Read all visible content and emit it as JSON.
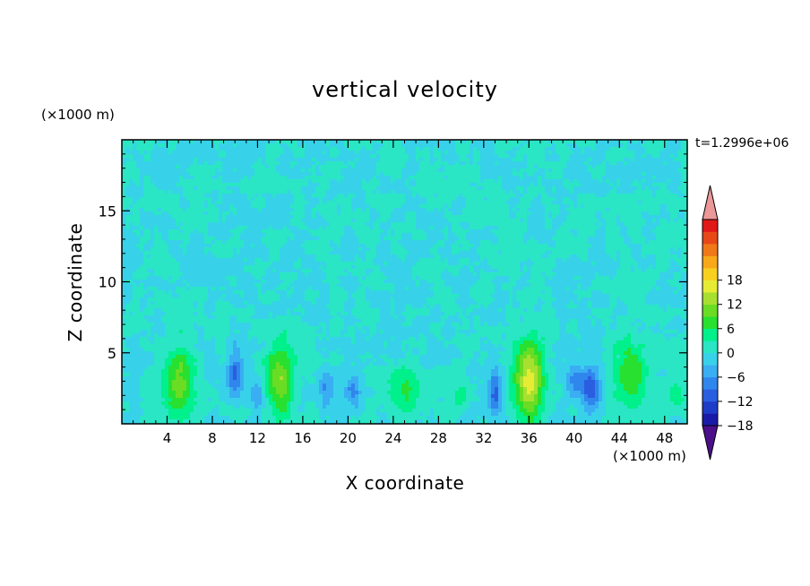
{
  "chart_data": {
    "type": "heatmap",
    "title": "vertical velocity",
    "xlabel": "X coordinate",
    "ylabel": "Z coordinate",
    "x_unit_label": "(×1000 m)",
    "y_unit_label": "(×1000 m)",
    "time_label": "t=1.2996e+06",
    "xlim": [
      0,
      50
    ],
    "ylim": [
      0,
      20
    ],
    "x_ticks": [
      4,
      8,
      12,
      16,
      20,
      24,
      28,
      32,
      36,
      40,
      44,
      48
    ],
    "y_ticks": [
      5,
      10,
      15
    ],
    "colorbar": {
      "range": [
        -21,
        21
      ],
      "tick_values": [
        18,
        12,
        6,
        0,
        -6,
        -12,
        -18
      ],
      "tick_labels": [
        "18",
        "12",
        "6",
        "0",
        "−6",
        "−12",
        "−18"
      ],
      "level_step": 3,
      "colors": [
        "#4b0f8c",
        "#1a1aa8",
        "#1e3cc8",
        "#2a5ee0",
        "#2f86ec",
        "#3aaef2",
        "#37d2ea",
        "#2ae6c4",
        "#00f08c",
        "#28e030",
        "#6adc24",
        "#a8e030",
        "#e6ec34",
        "#f8d020",
        "#f8a818",
        "#f07818",
        "#e84818",
        "#e01818",
        "#ec9898"
      ],
      "extend": "both"
    },
    "features": [
      {
        "x": 5,
        "z": 3,
        "peak": 11,
        "sx": 0.9,
        "sz": 1.8
      },
      {
        "x": 10,
        "z": 3.5,
        "peak": -11,
        "sx": 0.5,
        "sz": 1.2
      },
      {
        "x": 12,
        "z": 2,
        "peak": -6,
        "sx": 0.4,
        "sz": 0.8
      },
      {
        "x": 14,
        "z": 3.2,
        "peak": 11,
        "sx": 0.9,
        "sz": 1.8
      },
      {
        "x": 18,
        "z": 2.5,
        "peak": -7,
        "sx": 0.4,
        "sz": 1
      },
      {
        "x": 20.5,
        "z": 2.3,
        "peak": -8,
        "sx": 0.5,
        "sz": 0.8
      },
      {
        "x": 25,
        "z": 2.4,
        "peak": 6,
        "sx": 1.2,
        "sz": 1.2
      },
      {
        "x": 30,
        "z": 2,
        "peak": 4,
        "sx": 0.6,
        "sz": 0.8
      },
      {
        "x": 33,
        "z": 2.2,
        "peak": -10,
        "sx": 0.4,
        "sz": 1.2
      },
      {
        "x": 36,
        "z": 3,
        "peak": 16,
        "sx": 0.9,
        "sz": 2
      },
      {
        "x": 40,
        "z": 3,
        "peak": -6,
        "sx": 0.5,
        "sz": 1
      },
      {
        "x": 41.5,
        "z": 2.6,
        "peak": -11,
        "sx": 0.6,
        "sz": 1
      },
      {
        "x": 45,
        "z": 3.5,
        "peak": 9,
        "sx": 1,
        "sz": 1.8
      },
      {
        "x": 49,
        "z": 2,
        "peak": 6,
        "sx": 0.5,
        "sz": 0.7
      }
    ]
  }
}
